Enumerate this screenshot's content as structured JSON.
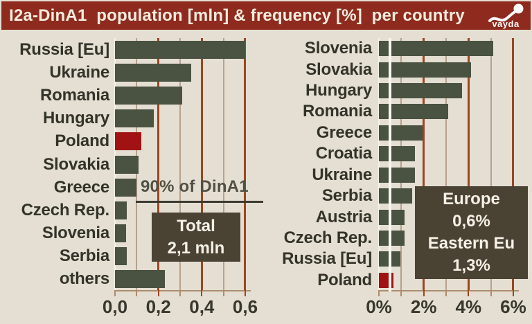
{
  "header": {
    "title": "I2a-DinA1  population [mln] & frequency [%]  per country",
    "logo_text": "vayda"
  },
  "colors": {
    "background": "#e4dfd2",
    "header_bg": "#8e2b1e",
    "title_text": "#f3ecdf",
    "bar": "#4a5241",
    "highlight": "#a11313",
    "grid_major": "#9c4520",
    "grid_minor": "#b7a18d",
    "zero_line": "#f4f1e8",
    "reference_line": "#f7f5ee",
    "axis": "#ad8c6d",
    "box_bg": "#4a4233",
    "box_text": "#f5f1e7",
    "label": "#33332a"
  },
  "chart_data": [
    {
      "type": "bar",
      "orientation": "horizontal",
      "unit": "population [mln]",
      "categories": [
        "Russia [Eu]",
        "Ukraine",
        "Romania",
        "Hungary",
        "Poland",
        "Slovakia",
        "Greece",
        "Czech Rep.",
        "Slovenia",
        "Serbia",
        "others"
      ],
      "values": [
        0.6,
        0.35,
        0.31,
        0.18,
        0.12,
        0.11,
        0.1,
        0.055,
        0.05,
        0.055,
        0.23
      ],
      "highlight_category": "Poland",
      "xlim": [
        0,
        0.65
      ],
      "grid": true,
      "x_ticks": {
        "values": [
          0,
          0.2,
          0.4,
          0.6
        ],
        "labels": [
          "0,0",
          "0,2",
          "0,4",
          "0,6"
        ]
      },
      "annotations": {
        "note": "90% of DinA1",
        "box_lines": [
          "Total",
          "2,1 mln"
        ]
      }
    },
    {
      "type": "bar",
      "orientation": "horizontal",
      "unit": "frequency [%]",
      "categories": [
        "Slovenia",
        "Slovakia",
        "Hungary",
        "Romania",
        "Greece",
        "Croatia",
        "Ukraine",
        "Serbia",
        "Austria",
        "Czech Rep.",
        "Russia [Eu]",
        "Poland"
      ],
      "values": [
        5.1,
        4.1,
        3.7,
        3.1,
        1.95,
        1.6,
        1.6,
        1.5,
        1.15,
        1.15,
        0.95,
        0.65
      ],
      "highlight_category": "Poland",
      "xlim": [
        0,
        6.3
      ],
      "grid": true,
      "x_ticks": {
        "values": [
          0,
          2,
          4,
          6
        ],
        "labels": [
          "0%",
          "2%",
          "4%",
          "6%"
        ]
      },
      "reference_line": {
        "x": 0.5
      },
      "annotations": {
        "box_lines": [
          "Europe",
          "0,6%",
          "Eastern Eu",
          "1,3%"
        ]
      }
    }
  ]
}
